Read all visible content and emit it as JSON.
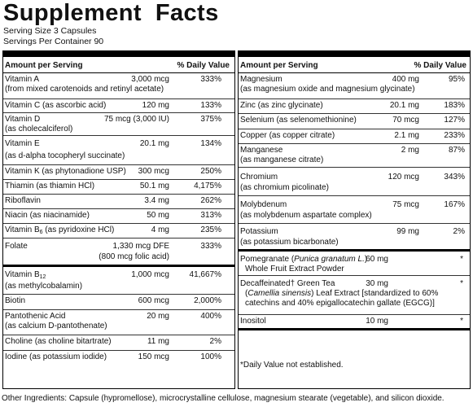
{
  "title": "Supplement  Facts",
  "serving_size": "Serving Size 3 Capsules",
  "servings_per_container": "Servings Per Container 90",
  "header": {
    "amount": "Amount per Serving",
    "dv": "% Daily Value"
  },
  "left_rows": [
    {
      "name": "Vitamin A",
      "name2": "(from mixed carotenoids and retinyl acetate)",
      "amount": "3,000 mcg",
      "dv": "333%"
    },
    {
      "name": "Vitamin C (as ascorbic acid)",
      "amount": "120 mg",
      "dv": "133%"
    },
    {
      "name": "Vitamin D",
      "name2": "(as cholecalciferol)",
      "amount": "75 mcg (3,000 IU)",
      "dv": "375%"
    },
    {
      "name": "Vitamin E",
      "name2": "(as d-alpha tocopheryl succinate)",
      "amount": "20.1 mg",
      "dv": "134%"
    },
    {
      "name": "Vitamin K (as phytonadione USP)",
      "amount": "300 mcg",
      "dv": "250%"
    },
    {
      "name": "Thiamin (as thiamin HCl)",
      "amount": "50.1 mg",
      "dv": "4,175%"
    },
    {
      "name": "Riboflavin",
      "amount": "3.4 mg",
      "dv": "262%"
    },
    {
      "name": "Niacin (as niacinamide)",
      "amount": "50 mg",
      "dv": "313%"
    },
    {
      "name_pre": "Vitamin B",
      "name_sub": "6",
      "name_post": " (as pyridoxine HCl)",
      "amount": "4 mg",
      "dv": "235%"
    },
    {
      "name": "Folate",
      "amount": "1,330 mcg DFE",
      "amount2": "(800 mcg folic acid)",
      "dv": "333%"
    },
    {
      "name_pre": "Vitamin B",
      "name_sub": "12",
      "name2": "(as methylcobalamin)",
      "amount": "1,000 mcg",
      "dv": "41,667%"
    },
    {
      "name": "Biotin",
      "amount": "600 mcg",
      "dv": "2,000%"
    },
    {
      "name": "Pantothenic Acid",
      "name2": "(as calcium D-pantothenate)",
      "amount": "20 mg",
      "dv": "400%"
    },
    {
      "name": "Choline (as choline bitartrate)",
      "amount": "11 mg",
      "dv": "2%"
    },
    {
      "name": "Iodine (as potassium iodide)",
      "amount": "150 mcg",
      "dv": "100%"
    }
  ],
  "right_rows": [
    {
      "name": "Magnesium",
      "name2": "(as magnesium oxide and magnesium glycinate)",
      "amount": "400 mg",
      "dv": "95%"
    },
    {
      "name": "Zinc (as zinc glycinate)",
      "amount": "20.1 mg",
      "dv": "183%"
    },
    {
      "name": "Selenium (as selenomethionine)",
      "amount": "70 mcg",
      "dv": "127%"
    },
    {
      "name": "Copper (as copper citrate)",
      "amount": "2.1 mg",
      "dv": "233%"
    },
    {
      "name": "Manganese",
      "name2": "(as manganese citrate)",
      "amount": "2 mg",
      "dv": "87%"
    },
    {
      "name": "Chromium",
      "name2": "(as chromium picolinate)",
      "amount": "120 mcg",
      "dv": "343%"
    },
    {
      "name": "Molybdenum",
      "name2": "(as molybdenum aspartate complex)",
      "amount": "75 mcg",
      "dv": "167%"
    },
    {
      "name": "Potassium",
      "name2": "(as potassium bicarbonate)",
      "amount": "99 mg",
      "dv": "2%"
    }
  ],
  "right_rows_b": [
    {
      "name_pre": "Pomegranate (",
      "name_ital": "Punica granatum L.",
      "name_post": ")",
      "name2": "Whole Fruit Extract Powder",
      "amount": "60 mg",
      "dv": "*"
    },
    {
      "name": "Decaffeinated† Green Tea",
      "name2_pre": "(",
      "name2_ital": "Camellia sinensis",
      "name2_post": ") Leaf Extract [standardized to 60%",
      "name3": "catechins and 40% epigallocatechin gallate (EGCG)]",
      "amount": "30 mg",
      "dv": "*"
    },
    {
      "name": "Inositol",
      "amount": "10 mg",
      "dv": "*"
    }
  ],
  "footnote": "*Daily Value not established.",
  "other_ingredients": "Other Ingredients: Capsule (hypromellose), microcrystalline cellulose, magnesium stearate (vegetable), and silicon dioxide."
}
